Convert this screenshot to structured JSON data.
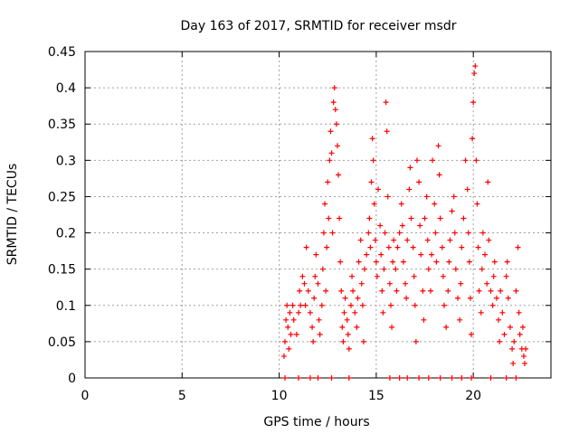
{
  "chart_data": {
    "type": "scatter",
    "title": "Day 163 of 2017, SRMTID for receiver msdr",
    "xlabel": "GPS time / hours",
    "ylabel": "SRMTID / TECUs",
    "xlim": [
      0,
      24
    ],
    "ylim": [
      0,
      0.45
    ],
    "xticks": [
      0,
      5,
      10,
      15,
      20
    ],
    "xtick_labels": [
      "0",
      "5",
      "10",
      "15",
      "20"
    ],
    "yticks": [
      0,
      0.05,
      0.1,
      0.15,
      0.2,
      0.25,
      0.3,
      0.35,
      0.4,
      0.45
    ],
    "ytick_labels": [
      "0",
      "0.05",
      "0.1",
      "0.15",
      "0.2",
      "0.25",
      "0.3",
      "0.35",
      "0.4",
      "0.45"
    ],
    "grid": true,
    "marker": "+",
    "color": "#ff0000",
    "series": [
      {
        "name": "SRMTID",
        "points": [
          [
            10.25,
            0.03
          ],
          [
            10.3,
            0.05
          ],
          [
            10.35,
            0.08
          ],
          [
            10.4,
            0.1
          ],
          [
            10.45,
            0.07
          ],
          [
            10.5,
            0.04
          ],
          [
            10.55,
            0.09
          ],
          [
            10.6,
            0.06
          ],
          [
            10.7,
            0.1
          ],
          [
            10.75,
            0.08
          ],
          [
            10.9,
            0.06
          ],
          [
            11.0,
            0.09
          ],
          [
            11.05,
            0.12
          ],
          [
            11.1,
            0.1
          ],
          [
            11.2,
            0.14
          ],
          [
            11.3,
            0.13
          ],
          [
            11.35,
            0.1
          ],
          [
            11.4,
            0.18
          ],
          [
            11.5,
            0.12
          ],
          [
            11.6,
            0.09
          ],
          [
            11.7,
            0.07
          ],
          [
            11.75,
            0.05
          ],
          [
            11.8,
            0.11
          ],
          [
            11.85,
            0.14
          ],
          [
            11.9,
            0.17
          ],
          [
            12.0,
            0.13
          ],
          [
            12.05,
            0.08
          ],
          [
            12.1,
            0.06
          ],
          [
            12.2,
            0.1
          ],
          [
            12.25,
            0.15
          ],
          [
            12.3,
            0.2
          ],
          [
            12.35,
            0.24
          ],
          [
            12.4,
            0.12
          ],
          [
            12.45,
            0.18
          ],
          [
            12.5,
            0.27
          ],
          [
            12.55,
            0.22
          ],
          [
            12.6,
            0.3
          ],
          [
            12.65,
            0.34
          ],
          [
            12.7,
            0.31
          ],
          [
            12.75,
            0.2
          ],
          [
            12.8,
            0.38
          ],
          [
            12.85,
            0.4
          ],
          [
            12.9,
            0.37
          ],
          [
            12.95,
            0.35
          ],
          [
            13.0,
            0.32
          ],
          [
            13.05,
            0.28
          ],
          [
            13.1,
            0.22
          ],
          [
            13.15,
            0.16
          ],
          [
            13.2,
            0.12
          ],
          [
            13.25,
            0.07
          ],
          [
            13.3,
            0.05
          ],
          [
            13.35,
            0.09
          ],
          [
            13.4,
            0.11
          ],
          [
            13.5,
            0.08
          ],
          [
            13.55,
            0.06
          ],
          [
            13.6,
            0.04
          ],
          [
            13.7,
            0.1
          ],
          [
            13.75,
            0.14
          ],
          [
            13.8,
            0.12
          ],
          [
            13.9,
            0.09
          ],
          [
            14.0,
            0.07
          ],
          [
            14.05,
            0.11
          ],
          [
            14.1,
            0.16
          ],
          [
            14.2,
            0.19
          ],
          [
            14.25,
            0.13
          ],
          [
            14.3,
            0.1
          ],
          [
            14.35,
            0.05
          ],
          [
            14.4,
            0.15
          ],
          [
            14.5,
            0.17
          ],
          [
            14.6,
            0.2
          ],
          [
            14.65,
            0.22
          ],
          [
            14.7,
            0.18
          ],
          [
            14.75,
            0.27
          ],
          [
            14.8,
            0.33
          ],
          [
            14.85,
            0.3
          ],
          [
            14.9,
            0.24
          ],
          [
            14.95,
            0.19
          ],
          [
            15.0,
            0.16
          ],
          [
            15.05,
            0.14
          ],
          [
            15.1,
            0.26
          ],
          [
            15.2,
            0.21
          ],
          [
            15.25,
            0.17
          ],
          [
            15.3,
            0.12
          ],
          [
            15.35,
            0.09
          ],
          [
            15.4,
            0.15
          ],
          [
            15.45,
            0.2
          ],
          [
            15.5,
            0.38
          ],
          [
            15.55,
            0.34
          ],
          [
            15.6,
            0.25
          ],
          [
            15.65,
            0.18
          ],
          [
            15.7,
            0.13
          ],
          [
            15.75,
            0.1
          ],
          [
            15.8,
            0.07
          ],
          [
            15.85,
            0.16
          ],
          [
            15.9,
            0.19
          ],
          [
            16.0,
            0.15
          ],
          [
            16.05,
            0.12
          ],
          [
            16.1,
            0.18
          ],
          [
            16.2,
            0.2
          ],
          [
            16.3,
            0.24
          ],
          [
            16.35,
            0.21
          ],
          [
            16.4,
            0.16
          ],
          [
            16.5,
            0.13
          ],
          [
            16.55,
            0.11
          ],
          [
            16.6,
            0.19
          ],
          [
            16.7,
            0.26
          ],
          [
            16.75,
            0.29
          ],
          [
            16.8,
            0.22
          ],
          [
            16.9,
            0.18
          ],
          [
            16.95,
            0.14
          ],
          [
            17.0,
            0.1
          ],
          [
            17.05,
            0.05
          ],
          [
            17.1,
            0.3
          ],
          [
            17.2,
            0.27
          ],
          [
            17.25,
            0.21
          ],
          [
            17.3,
            0.17
          ],
          [
            17.4,
            0.12
          ],
          [
            17.45,
            0.08
          ],
          [
            17.5,
            0.22
          ],
          [
            17.6,
            0.25
          ],
          [
            17.65,
            0.19
          ],
          [
            17.7,
            0.15
          ],
          [
            17.8,
            0.12
          ],
          [
            17.85,
            0.17
          ],
          [
            17.9,
            0.3
          ],
          [
            18.0,
            0.24
          ],
          [
            18.05,
            0.2
          ],
          [
            18.1,
            0.16
          ],
          [
            18.2,
            0.32
          ],
          [
            18.25,
            0.28
          ],
          [
            18.3,
            0.22
          ],
          [
            18.4,
            0.18
          ],
          [
            18.45,
            0.14
          ],
          [
            18.5,
            0.1
          ],
          [
            18.6,
            0.07
          ],
          [
            18.7,
            0.12
          ],
          [
            18.75,
            0.16
          ],
          [
            18.8,
            0.19
          ],
          [
            18.9,
            0.23
          ],
          [
            19.0,
            0.25
          ],
          [
            19.05,
            0.2
          ],
          [
            19.1,
            0.15
          ],
          [
            19.2,
            0.11
          ],
          [
            19.3,
            0.08
          ],
          [
            19.35,
            0.13
          ],
          [
            19.4,
            0.18
          ],
          [
            19.5,
            0.22
          ],
          [
            19.6,
            0.3
          ],
          [
            19.7,
            0.26
          ],
          [
            19.75,
            0.2
          ],
          [
            19.8,
            0.16
          ],
          [
            19.85,
            0.11
          ],
          [
            19.9,
            0.06
          ],
          [
            19.95,
            0.33
          ],
          [
            20.0,
            0.38
          ],
          [
            20.05,
            0.42
          ],
          [
            20.1,
            0.43
          ],
          [
            20.15,
            0.3
          ],
          [
            20.2,
            0.24
          ],
          [
            20.25,
            0.18
          ],
          [
            20.3,
            0.12
          ],
          [
            20.4,
            0.09
          ],
          [
            20.45,
            0.15
          ],
          [
            20.5,
            0.2
          ],
          [
            20.6,
            0.17
          ],
          [
            20.7,
            0.13
          ],
          [
            20.75,
            0.27
          ],
          [
            20.8,
            0.19
          ],
          [
            20.9,
            0.12
          ],
          [
            21.0,
            0.1
          ],
          [
            21.05,
            0.14
          ],
          [
            21.1,
            0.16
          ],
          [
            21.2,
            0.11
          ],
          [
            21.3,
            0.08
          ],
          [
            21.35,
            0.05
          ],
          [
            21.4,
            0.12
          ],
          [
            21.5,
            0.09
          ],
          [
            21.6,
            0.06
          ],
          [
            21.7,
            0.14
          ],
          [
            21.75,
            0.16
          ],
          [
            21.8,
            0.11
          ],
          [
            21.9,
            0.07
          ],
          [
            22.0,
            0.04
          ],
          [
            22.05,
            0.02
          ],
          [
            22.1,
            0.05
          ],
          [
            22.2,
            0.12
          ],
          [
            22.3,
            0.18
          ],
          [
            22.35,
            0.09
          ],
          [
            22.4,
            0.06
          ],
          [
            22.5,
            0.04
          ],
          [
            22.55,
            0.07
          ],
          [
            22.6,
            0.03
          ],
          [
            22.65,
            0.02
          ],
          [
            22.7,
            0.04
          ],
          [
            10.3,
            0.0
          ],
          [
            11.0,
            0.0
          ],
          [
            11.6,
            0.0
          ],
          [
            12.0,
            0.0
          ],
          [
            12.7,
            0.0
          ],
          [
            13.6,
            0.0
          ],
          [
            15.7,
            0.0
          ],
          [
            16.2,
            0.0
          ],
          [
            16.6,
            0.0
          ],
          [
            17.2,
            0.0
          ],
          [
            17.7,
            0.0
          ],
          [
            18.3,
            0.0
          ],
          [
            18.9,
            0.0
          ],
          [
            19.4,
            0.0
          ],
          [
            19.9,
            0.0
          ],
          [
            20.9,
            0.0
          ],
          [
            21.7,
            0.0
          ],
          [
            22.2,
            0.0
          ]
        ]
      }
    ]
  }
}
